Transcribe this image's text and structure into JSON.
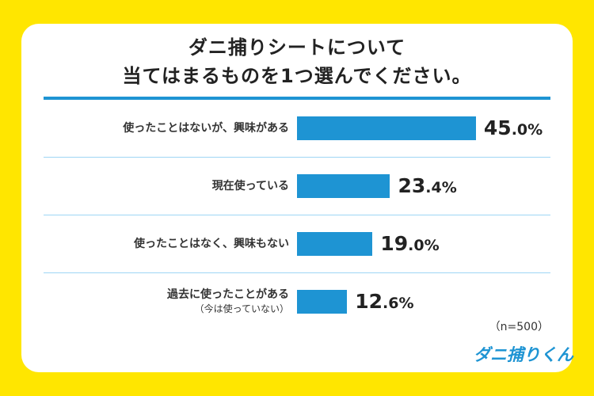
{
  "title": [
    "ダニ捕りシートについて",
    "当てはまるものを1つ選んでください。"
  ],
  "chart_data": {
    "type": "bar",
    "orientation": "horizontal",
    "categories": [
      "使ったことはないが、興味がある",
      "現在使っている",
      "使ったことはなく、興味もない",
      "過去に使ったことがある"
    ],
    "category_notes": [
      "",
      "",
      "",
      "（今は使っていない）"
    ],
    "values": [
      45.0,
      23.4,
      19.0,
      12.6
    ],
    "value_labels": [
      [
        "45",
        ".0%"
      ],
      [
        "23",
        ".4%"
      ],
      [
        "19",
        ".0%"
      ],
      [
        "12",
        ".6%"
      ]
    ],
    "unit": "%",
    "color": "#1e94d3",
    "xlim": [
      0,
      100
    ]
  },
  "note": "（n=500）",
  "logo": "ダニ捕りくん"
}
